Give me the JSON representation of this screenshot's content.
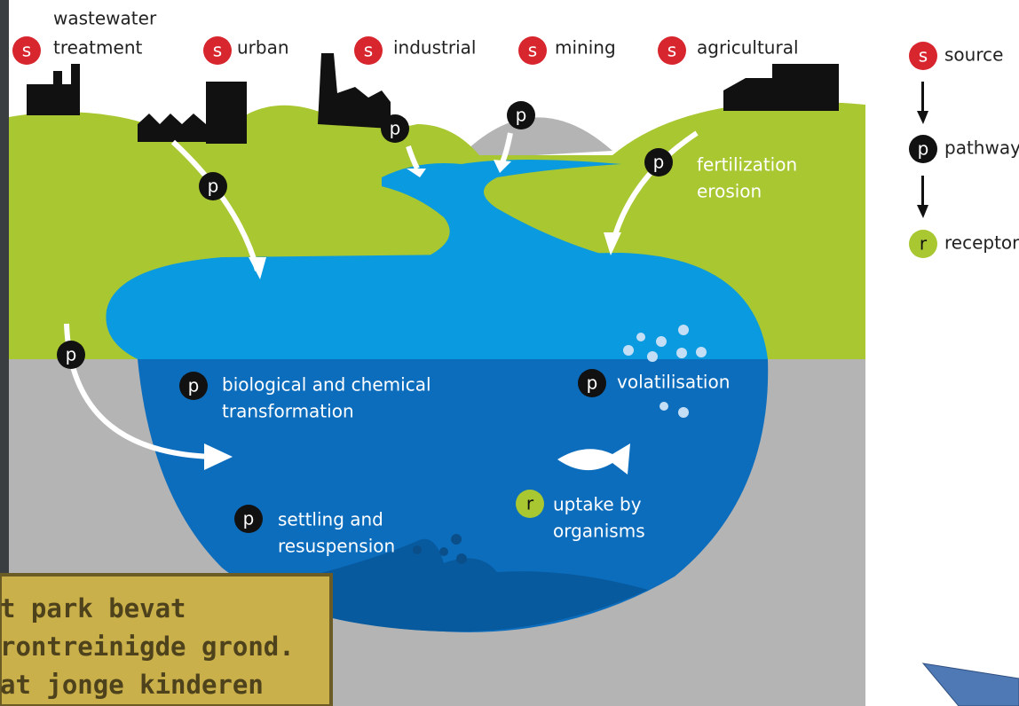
{
  "sources": [
    {
      "badge": "s",
      "lines": [
        "wastewater",
        "treatment"
      ]
    },
    {
      "badge": "s",
      "lines": [
        "urban"
      ]
    },
    {
      "badge": "s",
      "lines": [
        "industrial"
      ]
    },
    {
      "badge": "s",
      "lines": [
        "mining"
      ]
    },
    {
      "badge": "s",
      "lines": [
        "agricultural"
      ]
    }
  ],
  "legend": [
    {
      "badge": "s",
      "label": "source"
    },
    {
      "badge": "p",
      "label": "pathway"
    },
    {
      "badge": "r",
      "label": "receptor"
    }
  ],
  "processes": [
    {
      "lines": [
        "fertilization",
        "erosion"
      ]
    },
    {
      "lines": [
        "biological and chemical",
        "transformation"
      ]
    },
    {
      "lines": [
        "volatilisation"
      ]
    },
    {
      "lines": [
        "settling and",
        "resuspension"
      ]
    },
    {
      "lines": [
        "uptake by",
        "organisms"
      ]
    }
  ],
  "sign": {
    "lines": [
      "t park bevat",
      "rontreinigde grond.",
      "at jonge kinderen"
    ]
  }
}
